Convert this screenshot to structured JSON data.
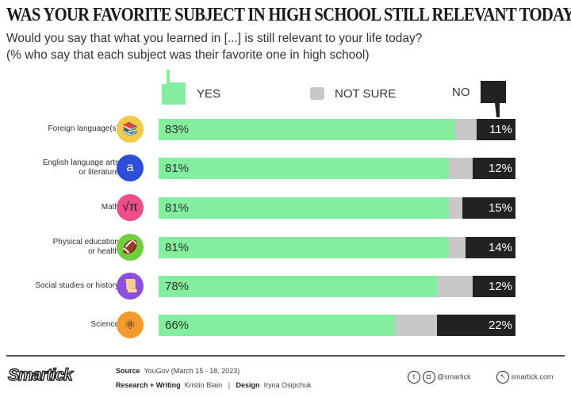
{
  "chart_data": {
    "type": "bar",
    "stacked": true,
    "orientation": "horizontal",
    "title": "WAS YOUR FAVORITE SUBJECT IN HIGH SCHOOL STILL RELEVANT TODAY?",
    "subtitle": [
      "Would you say that what you learned in [...] is still relevant to your life today?",
      "(% who say that each subject was their favorite one in high school)"
    ],
    "categories": [
      "Foreign language(s)",
      "English language arts or literature",
      "Math",
      "Physical education or health",
      "Social studies or history",
      "Science"
    ],
    "category_lines": [
      [
        "Foreign language(s)"
      ],
      [
        "English language arts",
        "or literature"
      ],
      [
        "Math"
      ],
      [
        "Physical education",
        "or health"
      ],
      [
        "Social studies or history"
      ],
      [
        "Science"
      ]
    ],
    "series": [
      {
        "name": "YES",
        "color": "#83ee9e",
        "values": [
          83,
          81,
          81,
          81,
          78,
          66
        ]
      },
      {
        "name": "NOT SURE",
        "color": "#c8c8c8",
        "values": [
          6,
          7,
          4,
          5,
          10,
          12
        ]
      },
      {
        "name": "NO",
        "color": "#222222",
        "values": [
          11,
          12,
          15,
          14,
          12,
          22
        ]
      }
    ],
    "icons": [
      {
        "name": "books-icon",
        "color": "#f3c94a",
        "glyph": "📚"
      },
      {
        "name": "dictionary-icon",
        "color": "#2d4fd8",
        "glyph": "a"
      },
      {
        "name": "math-symbols-icon",
        "color": "#ee4d8c",
        "glyph": "√π"
      },
      {
        "name": "football-icon",
        "color": "#6fcf3f",
        "glyph": "🏈"
      },
      {
        "name": "history-icon",
        "color": "#8a4fe0",
        "glyph": "📜"
      },
      {
        "name": "atom-icon",
        "color": "#f59a2e",
        "glyph": "⚛"
      }
    ],
    "xlim": [
      0,
      100
    ]
  },
  "footer": {
    "logo": "Smartick",
    "source_label": "Source",
    "source": "YouGov (March 15 - 18, 2023)",
    "research_label": "Research + Writing",
    "research": "Kristin Blain",
    "sep": "|",
    "design_label": "Design",
    "design": "Iryna Osipchuk",
    "social_handle": "@smartick",
    "website": "smartick.com"
  }
}
